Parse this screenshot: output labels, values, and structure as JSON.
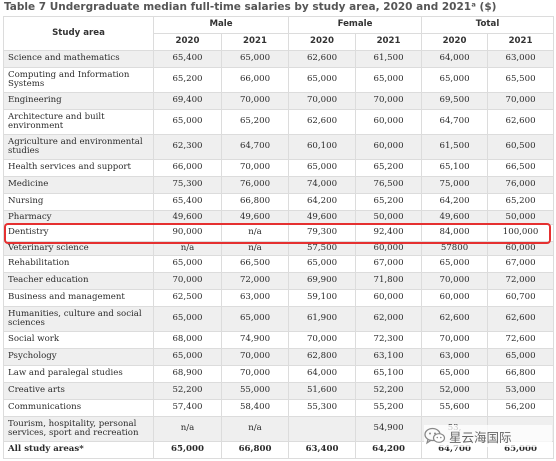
{
  "title": "Table 7 Undergraduate median full-time salaries by study area, 2020 and 2021ᵃ ($)",
  "headers": {
    "study_area": "Study area",
    "male": "Male",
    "female": "Female",
    "total": "Total",
    "years": [
      "2020",
      "2021",
      "2020",
      "2021",
      "2020",
      "2021"
    ]
  },
  "rows": [
    {
      "area": "Science and mathematics",
      "values": [
        "65,400",
        "65,000",
        "62,600",
        "61,500",
        "64,000",
        "63,000"
      ]
    },
    {
      "area": "Computing and Information Systems",
      "values": [
        "65,200",
        "66,000",
        "65,000",
        "65,000",
        "65,000",
        "65,500"
      ]
    },
    {
      "area": "Engineering",
      "values": [
        "69,400",
        "70,000",
        "70,000",
        "70,000",
        "69,500",
        "70,000"
      ]
    },
    {
      "area": "Architecture and built environment",
      "values": [
        "65,000",
        "65,200",
        "62,600",
        "60,000",
        "64,700",
        "62,600"
      ]
    },
    {
      "area": "Agriculture and environmental studies",
      "values": [
        "62,300",
        "64,700",
        "60,100",
        "60,000",
        "61,500",
        "60,500"
      ]
    },
    {
      "area": "Health services and support",
      "values": [
        "66,000",
        "70,000",
        "65,000",
        "65,200",
        "65,100",
        "66,500"
      ]
    },
    {
      "area": "Medicine",
      "values": [
        "75,300",
        "76,000",
        "74,000",
        "76,500",
        "75,000",
        "76,000"
      ]
    },
    {
      "area": "Nursing",
      "values": [
        "65,400",
        "66,800",
        "64,200",
        "65,200",
        "64,200",
        "65,200"
      ]
    },
    {
      "area": "Pharmacy",
      "values": [
        "49,600",
        "49,600",
        "49,600",
        "50,000",
        "49,600",
        "50,000"
      ]
    },
    {
      "area": "Dentistry",
      "values": [
        "90,000",
        "n/a",
        "79,300",
        "92,400",
        "84,000",
        "100,000"
      ]
    },
    {
      "area": "Veterinary science",
      "values": [
        "n/a",
        "n/a",
        "57,500",
        "60,000",
        "57800",
        "60,000"
      ]
    },
    {
      "area": "Rehabilitation",
      "values": [
        "65,000",
        "66,500",
        "65,000",
        "67,000",
        "65,000",
        "67,000"
      ]
    },
    {
      "area": "Teacher education",
      "values": [
        "70,000",
        "72,000",
        "69,900",
        "71,800",
        "70,000",
        "72,000"
      ]
    },
    {
      "area": "Business and management",
      "values": [
        "62,500",
        "63,000",
        "59,100",
        "60,000",
        "60,000",
        "60,700"
      ]
    },
    {
      "area": "Humanities, culture and social sciences",
      "values": [
        "65,000",
        "65,000",
        "61,900",
        "62,000",
        "62,600",
        "62,600"
      ]
    },
    {
      "area": "Social work",
      "values": [
        "68,000",
        "74,900",
        "70,000",
        "72,300",
        "70,000",
        "72,600"
      ]
    },
    {
      "area": "Psychology",
      "values": [
        "65,000",
        "70,000",
        "62,800",
        "63,100",
        "63,000",
        "65,000"
      ]
    },
    {
      "area": "Law and paralegal studies",
      "values": [
        "68,900",
        "70,000",
        "64,000",
        "65,100",
        "65,000",
        "66,800"
      ]
    },
    {
      "area": "Creative arts",
      "values": [
        "52,200",
        "55,000",
        "51,600",
        "52,200",
        "52,000",
        "53,000"
      ]
    },
    {
      "area": "Communications",
      "values": [
        "57,400",
        "58,400",
        "55,300",
        "55,200",
        "55,600",
        "56,200"
      ]
    },
    {
      "area": "Tourism, hospitality, personal services, sport and recreation",
      "values": [
        "n/a",
        "n/a",
        "",
        "54,900",
        "53,",
        ""
      ]
    },
    {
      "area": "All study areas*",
      "values": [
        "65,000",
        "66,800",
        "63,400",
        "64,200",
        "64,700",
        "65,000"
      ]
    }
  ],
  "highlighted_row": "Dentistry",
  "watermark": {
    "text": "星云海国际",
    "icon": "wechat-icon"
  },
  "colors": {
    "highlight": "#e53030",
    "stripe": "#efefef",
    "grid": "#dcdcdc"
  }
}
